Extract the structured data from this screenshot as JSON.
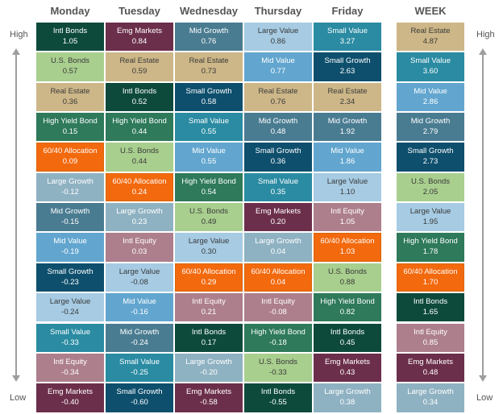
{
  "chart_data": {
    "type": "table",
    "axis": {
      "high": "High",
      "low": "Low"
    },
    "columns": [
      {
        "header": "Monday",
        "cells": [
          {
            "name": "Intl Bonds",
            "value": "1.05"
          },
          {
            "name": "U.S. Bonds",
            "value": "0.57"
          },
          {
            "name": "Real Estate",
            "value": "0.36"
          },
          {
            "name": "High Yield Bond",
            "value": "0.15"
          },
          {
            "name": "60/40 Allocation",
            "value": "0.09"
          },
          {
            "name": "Large Growth",
            "value": "-0.12"
          },
          {
            "name": "Mid Growth",
            "value": "-0.15"
          },
          {
            "name": "Mid Value",
            "value": "-0.19"
          },
          {
            "name": "Small Growth",
            "value": "-0.23"
          },
          {
            "name": "Large Value",
            "value": "-0.24"
          },
          {
            "name": "Small Value",
            "value": "-0.33"
          },
          {
            "name": "Intl Equity",
            "value": "-0.34"
          },
          {
            "name": "Emg Markets",
            "value": "-0.40"
          }
        ]
      },
      {
        "header": "Tuesday",
        "cells": [
          {
            "name": "Emg Markets",
            "value": "0.84"
          },
          {
            "name": "Real Estate",
            "value": "0.59"
          },
          {
            "name": "Intl Bonds",
            "value": "0.52"
          },
          {
            "name": "High Yield Bond",
            "value": "0.44"
          },
          {
            "name": "U.S. Bonds",
            "value": "0.44"
          },
          {
            "name": "60/40 Allocation",
            "value": "0.24"
          },
          {
            "name": "Large Growth",
            "value": "0.23"
          },
          {
            "name": "Intl Equity",
            "value": "0.03"
          },
          {
            "name": "Large Value",
            "value": "-0.08"
          },
          {
            "name": "Mid Value",
            "value": "-0.16"
          },
          {
            "name": "Mid Growth",
            "value": "-0.24"
          },
          {
            "name": "Small Value",
            "value": "-0.25"
          },
          {
            "name": "Small Growth",
            "value": "-0.60"
          }
        ]
      },
      {
        "header": "Wednesday",
        "cells": [
          {
            "name": "Mid Growth",
            "value": "0.76"
          },
          {
            "name": "Real Estate",
            "value": "0.73"
          },
          {
            "name": "Small Growth",
            "value": "0.58"
          },
          {
            "name": "Small Value",
            "value": "0.55"
          },
          {
            "name": "Mid Value",
            "value": "0.55"
          },
          {
            "name": "High Yield Bond",
            "value": "0.54"
          },
          {
            "name": "U.S. Bonds",
            "value": "0.49"
          },
          {
            "name": "Large Value",
            "value": "0.30"
          },
          {
            "name": "60/40 Allocation",
            "value": "0.29"
          },
          {
            "name": "Intl Equity",
            "value": "0.21"
          },
          {
            "name": "Intl Bonds",
            "value": "0.17"
          },
          {
            "name": "Large Growth",
            "value": "-0.20"
          },
          {
            "name": "Emg Markets",
            "value": "-0.58"
          }
        ]
      },
      {
        "header": "Thursday",
        "cells": [
          {
            "name": "Large Value",
            "value": "0.86"
          },
          {
            "name": "Mid Value",
            "value": "0.77"
          },
          {
            "name": "Real Estate",
            "value": "0.76"
          },
          {
            "name": "Mid Growth",
            "value": "0.48"
          },
          {
            "name": "Small Growth",
            "value": "0.36"
          },
          {
            "name": "Small Value",
            "value": "0.35"
          },
          {
            "name": "Emg Markets",
            "value": "0.20"
          },
          {
            "name": "Large Growth",
            "value": "0.04"
          },
          {
            "name": "60/40 Allocation",
            "value": "0.04"
          },
          {
            "name": "Intl Equity",
            "value": "-0.08"
          },
          {
            "name": "High Yield Bond",
            "value": "-0.18"
          },
          {
            "name": "U.S. Bonds",
            "value": "-0.33"
          },
          {
            "name": "Intl Bonds",
            "value": "-0.55"
          }
        ]
      },
      {
        "header": "Friday",
        "cells": [
          {
            "name": "Small Value",
            "value": "3.27"
          },
          {
            "name": "Small Growth",
            "value": "2.63"
          },
          {
            "name": "Real Estate",
            "value": "2.34"
          },
          {
            "name": "Mid Growth",
            "value": "1.92"
          },
          {
            "name": "Mid Value",
            "value": "1.86"
          },
          {
            "name": "Large Value",
            "value": "1.10"
          },
          {
            "name": "Intl Equity",
            "value": "1.05"
          },
          {
            "name": "60/40 Allocation",
            "value": "1.03"
          },
          {
            "name": "U.S. Bonds",
            "value": "0.88"
          },
          {
            "name": "High Yield Bond",
            "value": "0.82"
          },
          {
            "name": "Intl Bonds",
            "value": "0.45"
          },
          {
            "name": "Emg Markets",
            "value": "0.43"
          },
          {
            "name": "Large Growth",
            "value": "0.38"
          }
        ]
      },
      {
        "header": "WEEK",
        "cells": [
          {
            "name": "Real Estate",
            "value": "4.87"
          },
          {
            "name": "Small Value",
            "value": "3.60"
          },
          {
            "name": "Mid Value",
            "value": "2.86"
          },
          {
            "name": "Mid Growth",
            "value": "2.79"
          },
          {
            "name": "Small Growth",
            "value": "2.73"
          },
          {
            "name": "U.S. Bonds",
            "value": "2.05"
          },
          {
            "name": "Large Value",
            "value": "1.95"
          },
          {
            "name": "High Yield Bond",
            "value": "1.78"
          },
          {
            "name": "60/40 Allocation",
            "value": "1.70"
          },
          {
            "name": "Intl Bonds",
            "value": "1.65"
          },
          {
            "name": "Intl Equity",
            "value": "0.85"
          },
          {
            "name": "Emg Markets",
            "value": "0.48"
          },
          {
            "name": "Large Growth",
            "value": "0.34"
          }
        ]
      }
    ]
  },
  "colors": {
    "Intl Bonds": "#0d4a3c",
    "U.S. Bonds": "#a9cf8f",
    "Real Estate": "#cdb788",
    "High Yield Bond": "#2e7a5b",
    "60/40 Allocation": "#f2690e",
    "Large Growth": "#8fb2c2",
    "Mid Growth": "#4a7c91",
    "Mid Value": "#62a6cf",
    "Small Growth": "#0e4f6d",
    "Large Value": "#a6cbe3",
    "Small Value": "#2a8ba2",
    "Intl Equity": "#ad7f8d",
    "Emg Markets": "#6c2f4b"
  },
  "light_text_categories": [
    "U.S. Bonds",
    "Real Estate",
    "Large Value"
  ]
}
